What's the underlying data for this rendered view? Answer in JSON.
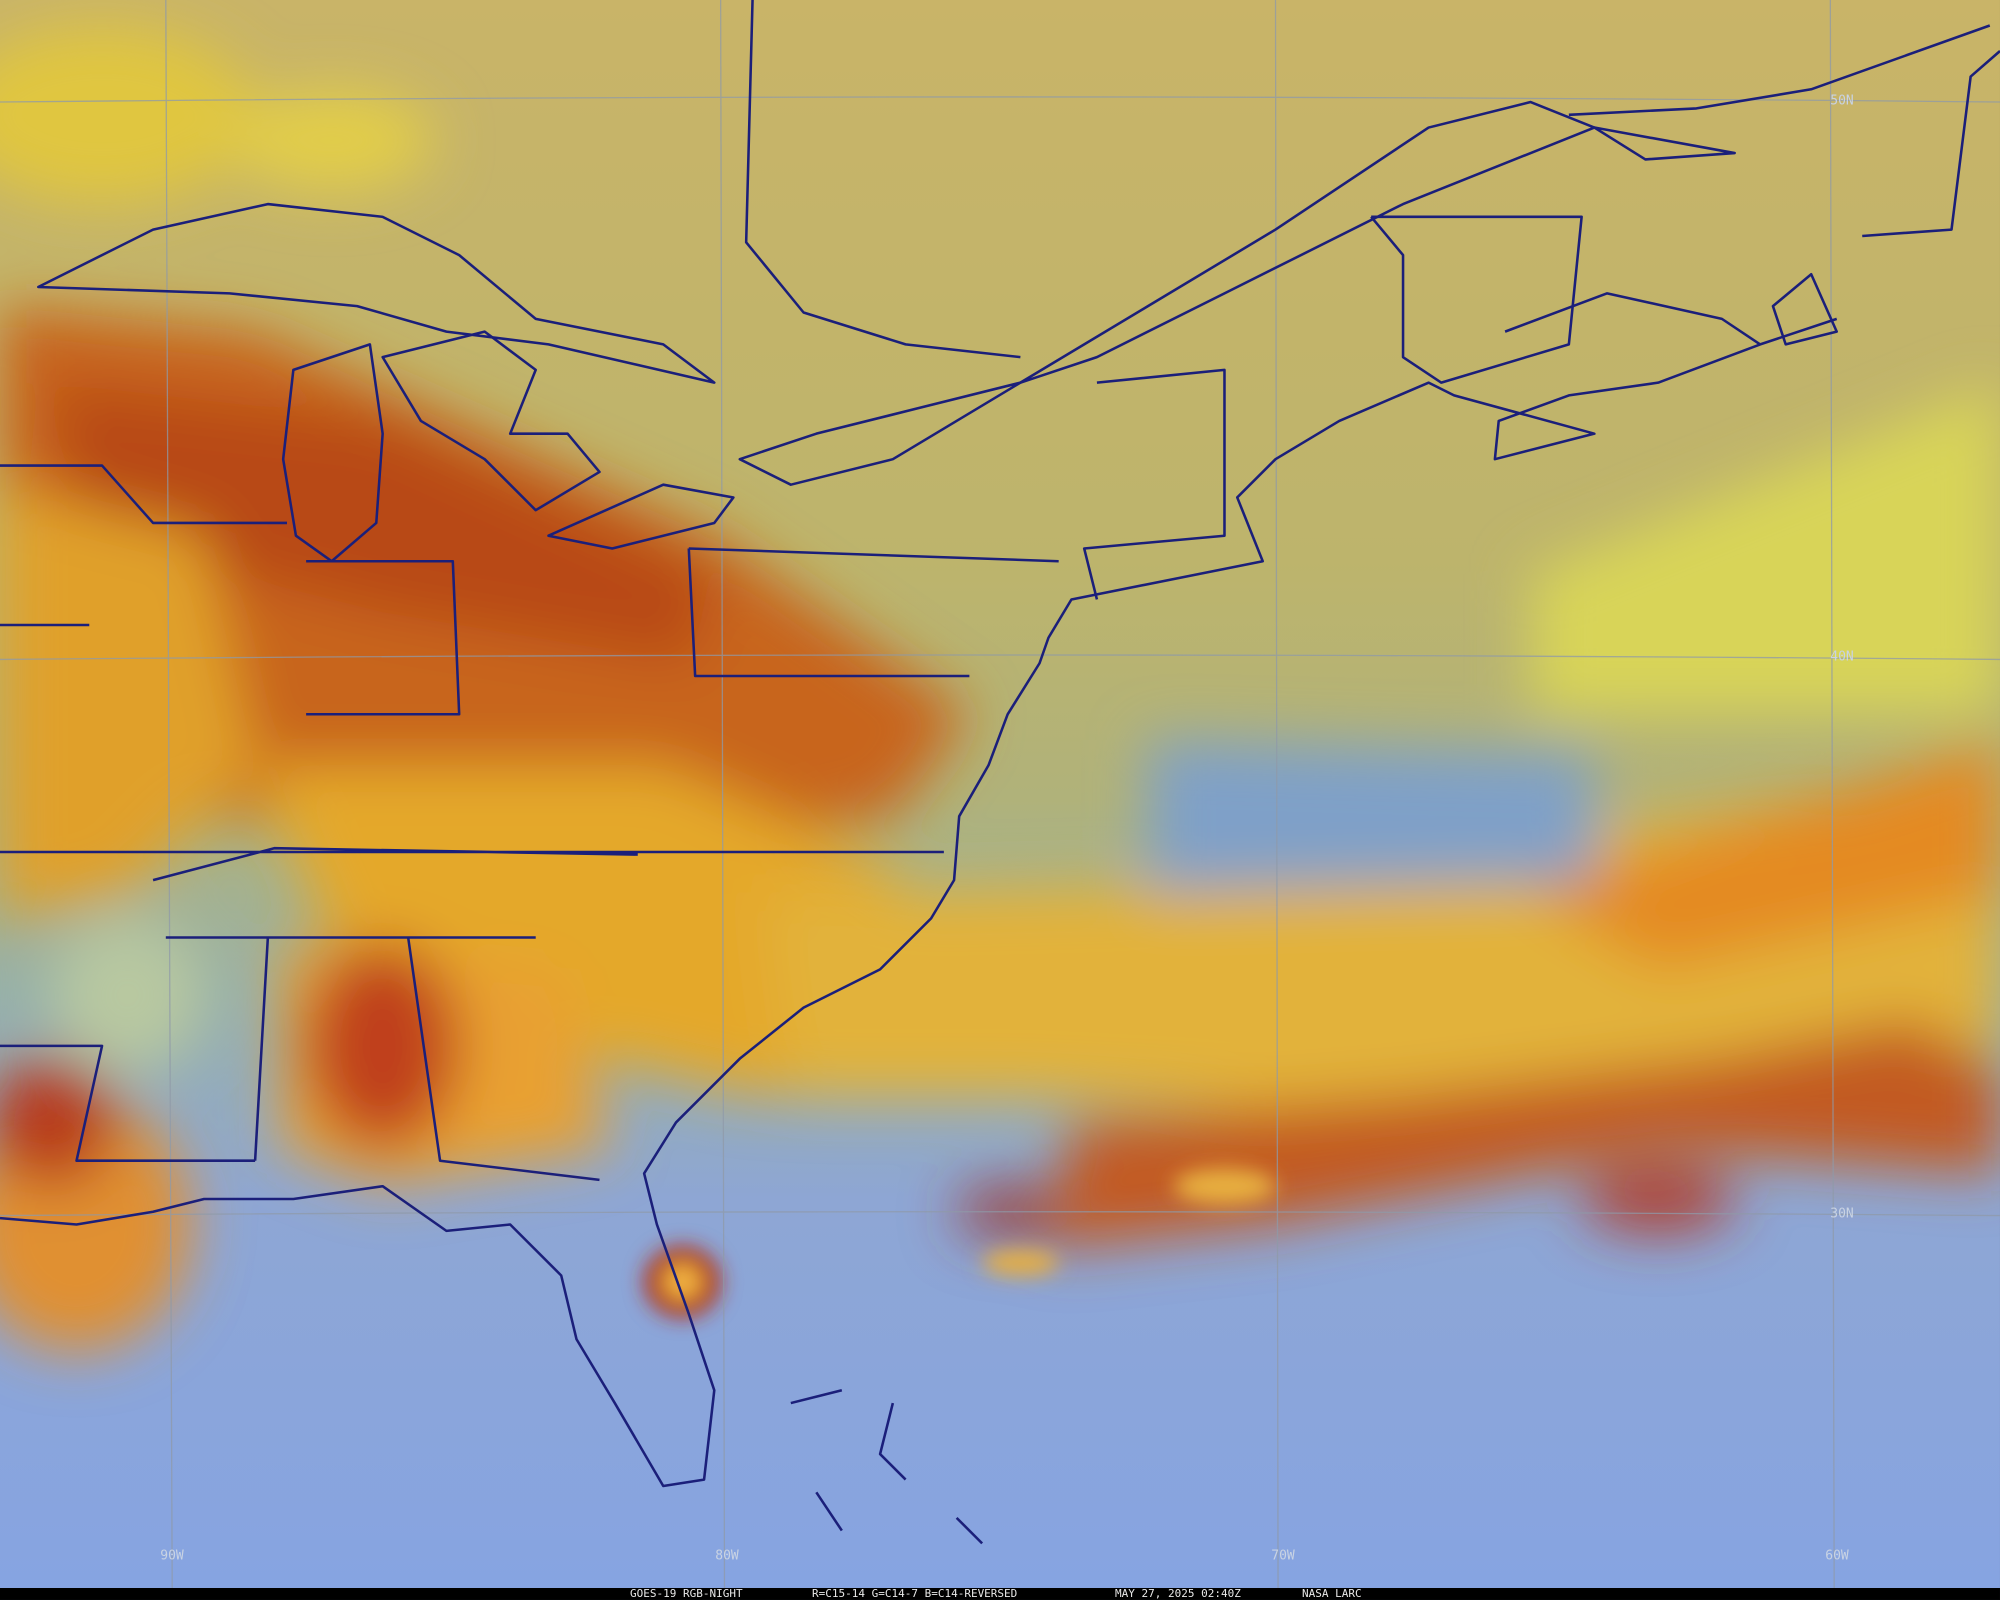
{
  "map": {
    "latitude_labels": [
      "50N",
      "40N",
      "30N"
    ],
    "longitude_labels": [
      "90W",
      "80W",
      "70W",
      "60W"
    ],
    "footer": {
      "product": "GOES-19 RGB-NIGHT",
      "recipe": "R=C15-14 G=C14-7 B=C14-REVERSED",
      "timestamp": "MAY 27, 2025 02:40Z",
      "credit": "NASA LARC"
    }
  }
}
